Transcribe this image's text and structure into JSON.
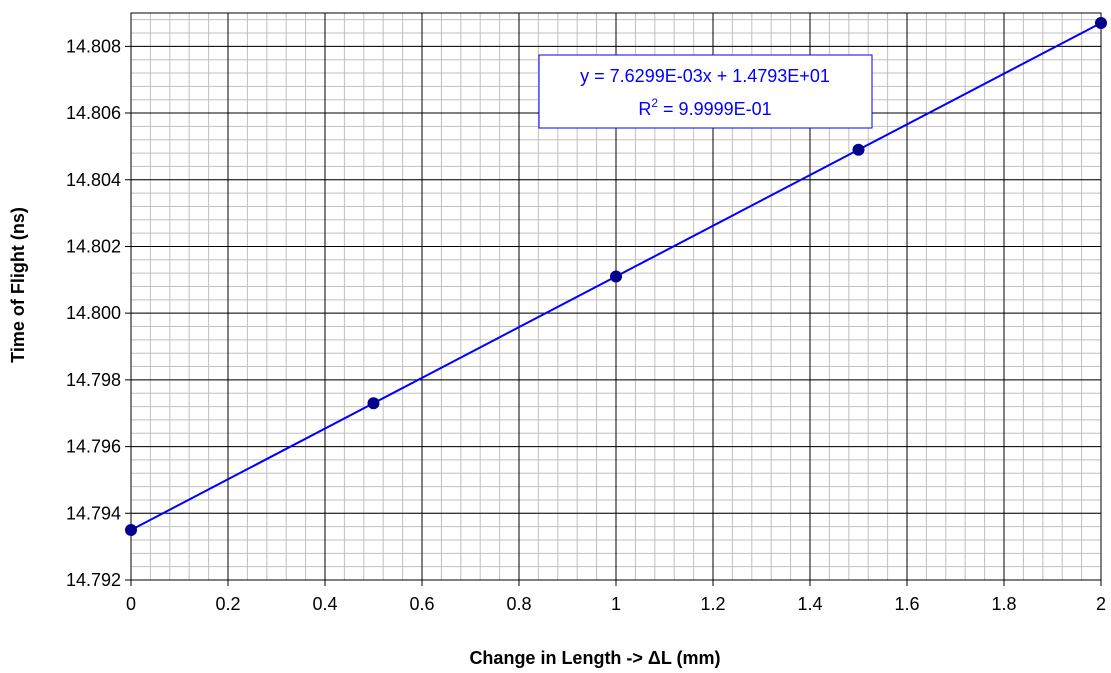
{
  "chart_data": {
    "type": "scatter",
    "xlabel": "Change in Length  ->   ΔL (mm)",
    "ylabel": "Time of Flight (ns)",
    "xlim": [
      0,
      2
    ],
    "ylim": [
      14.792,
      14.809
    ],
    "x_ticks": [
      "0",
      "0.2",
      "0.4",
      "0.6",
      "0.8",
      "1",
      "1.2",
      "1.4",
      "1.6",
      "1.8",
      "2"
    ],
    "y_ticks": [
      "14.792",
      "14.794",
      "14.796",
      "14.798",
      "14.800",
      "14.802",
      "14.804",
      "14.806",
      "14.808"
    ],
    "grid": true,
    "series": [
      {
        "x": [
          0,
          0.5,
          1,
          1.5,
          2
        ],
        "y": [
          14.7935,
          14.7973,
          14.8011,
          14.8049,
          14.8087
        ],
        "color": "#00008b"
      }
    ],
    "trendline": {
      "slope": 0.0076299,
      "intercept": 14.793,
      "color": "#0000ff",
      "equation": "y = 7.6299E-03x + 1.4793E+01",
      "r2_label": "R",
      "r2_sup": "2",
      "r2_value": " = 9.9999E-01"
    }
  }
}
